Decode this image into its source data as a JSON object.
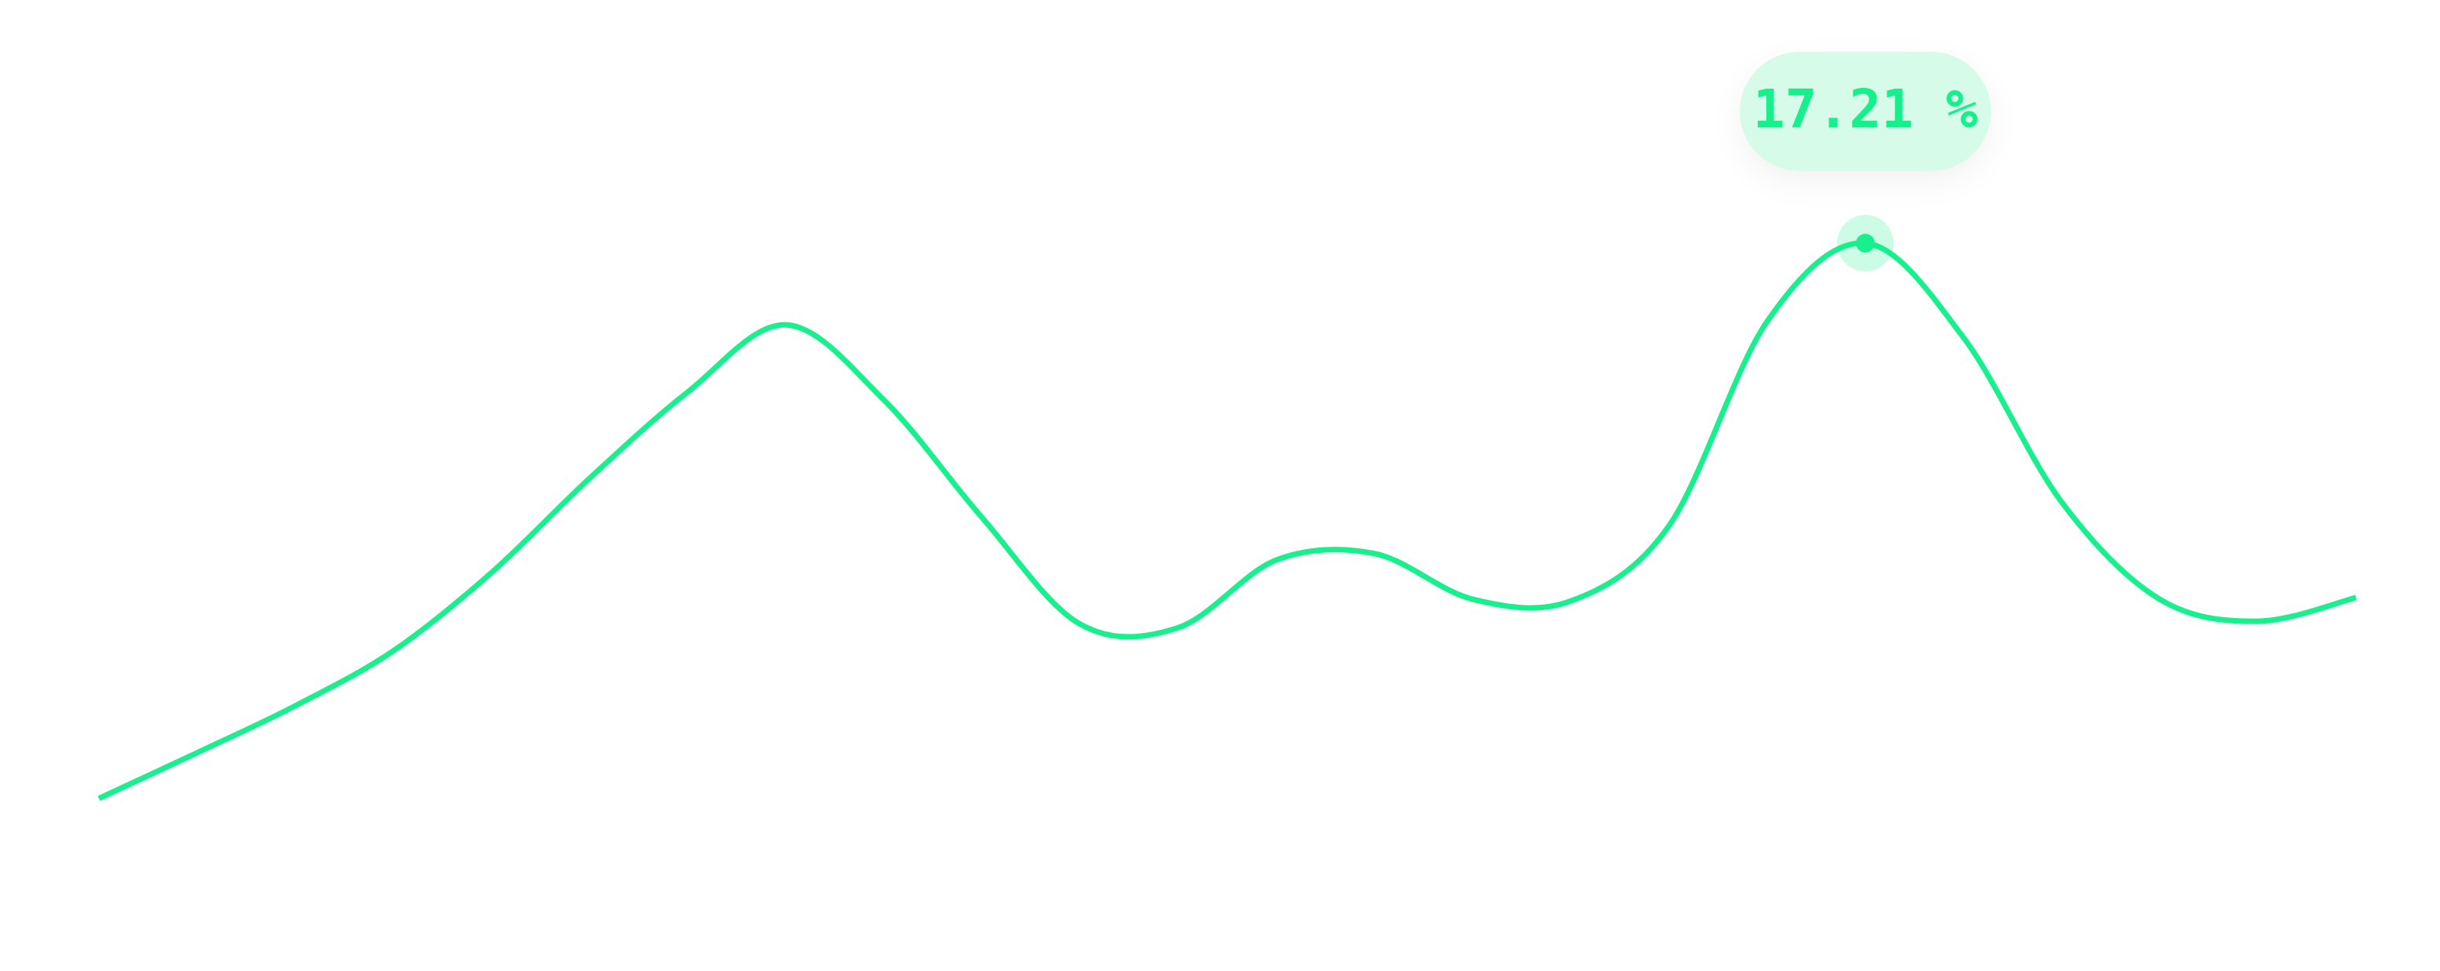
{
  "chart_data": {
    "type": "line",
    "categories": [
      null,
      null,
      null,
      null,
      null,
      null,
      null,
      null,
      null,
      null,
      null,
      null,
      null,
      null,
      null,
      null,
      null,
      null,
      null,
      null,
      null,
      null,
      null,
      null
    ],
    "series": [
      {
        "color": "#17f08c",
        "values": [
          4.08,
          5.16,
          6.27,
          7.57,
          9.42,
          11.65,
          13.69,
          15.28,
          13.5,
          10.72,
          8.2,
          8.12,
          9.72,
          9.87,
          8.79,
          8.75,
          10.53,
          15.36,
          17.21,
          14.98,
          11.09,
          8.79,
          8.27,
          8.83
        ],
        "value_labels": [
          null,
          null,
          null,
          null,
          null,
          null,
          null,
          null,
          null,
          null,
          null,
          null,
          null,
          null,
          null,
          null,
          null,
          null,
          "17.21 %",
          null,
          null,
          null,
          null,
          null
        ]
      }
    ],
    "ylim": [
      0,
      22.96
    ],
    "grid": false
  }
}
